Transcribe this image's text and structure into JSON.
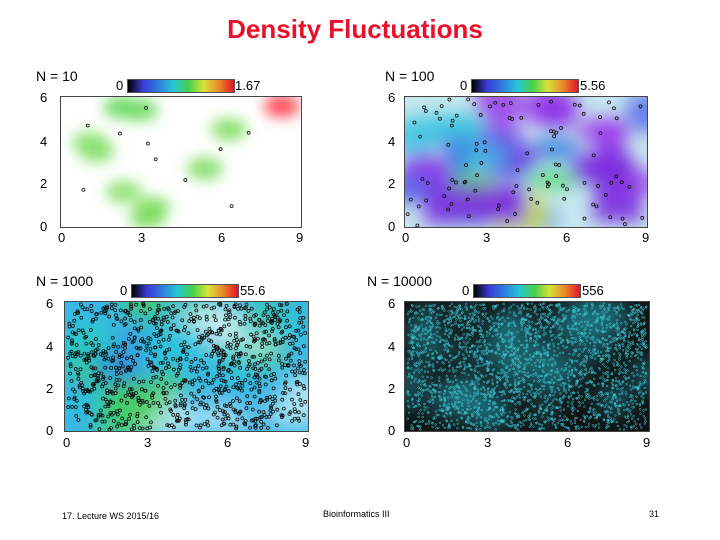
{
  "slide": {
    "title": "Density Fluctuations",
    "footer_left": "17. Lecture WS 2015/16",
    "footer_center": "Bioinformatics III",
    "page_number": "31"
  },
  "panels": [
    {
      "id": "n10",
      "label": "N = 10",
      "colorbar_min": "0",
      "colorbar_max": "1.67",
      "x_ticks": [
        "0",
        "3",
        "6",
        "9"
      ],
      "y_ticks": [
        "6",
        "4",
        "2",
        "0"
      ],
      "points": 10
    },
    {
      "id": "n100",
      "label": "N = 100",
      "colorbar_min": "0",
      "colorbar_max": "5.56",
      "x_ticks": [
        "0",
        "3",
        "6",
        "9"
      ],
      "y_ticks": [
        "6",
        "4",
        "2",
        "0"
      ],
      "points": 100
    },
    {
      "id": "n1000",
      "label": "N = 1000",
      "colorbar_min": "0",
      "colorbar_max": "55.6",
      "x_ticks": [
        "0",
        "3",
        "6",
        "9"
      ],
      "y_ticks": [
        "6",
        "4",
        "2",
        "0"
      ],
      "points": 1000
    },
    {
      "id": "n10000",
      "label": "N = 10000",
      "colorbar_min": "0",
      "colorbar_max": "556",
      "x_ticks": [
        "0",
        "3",
        "6",
        "9"
      ],
      "y_ticks": [
        "6",
        "4",
        "2",
        "0"
      ],
      "points": 10000
    }
  ],
  "colors": {
    "title": "#e8102a",
    "colorbar_gradient": [
      "#000000",
      "#3b3bd6",
      "#2f7de0",
      "#27c7d8",
      "#46d04a",
      "#d8e33a",
      "#e88a2a",
      "#e8102a"
    ]
  }
}
